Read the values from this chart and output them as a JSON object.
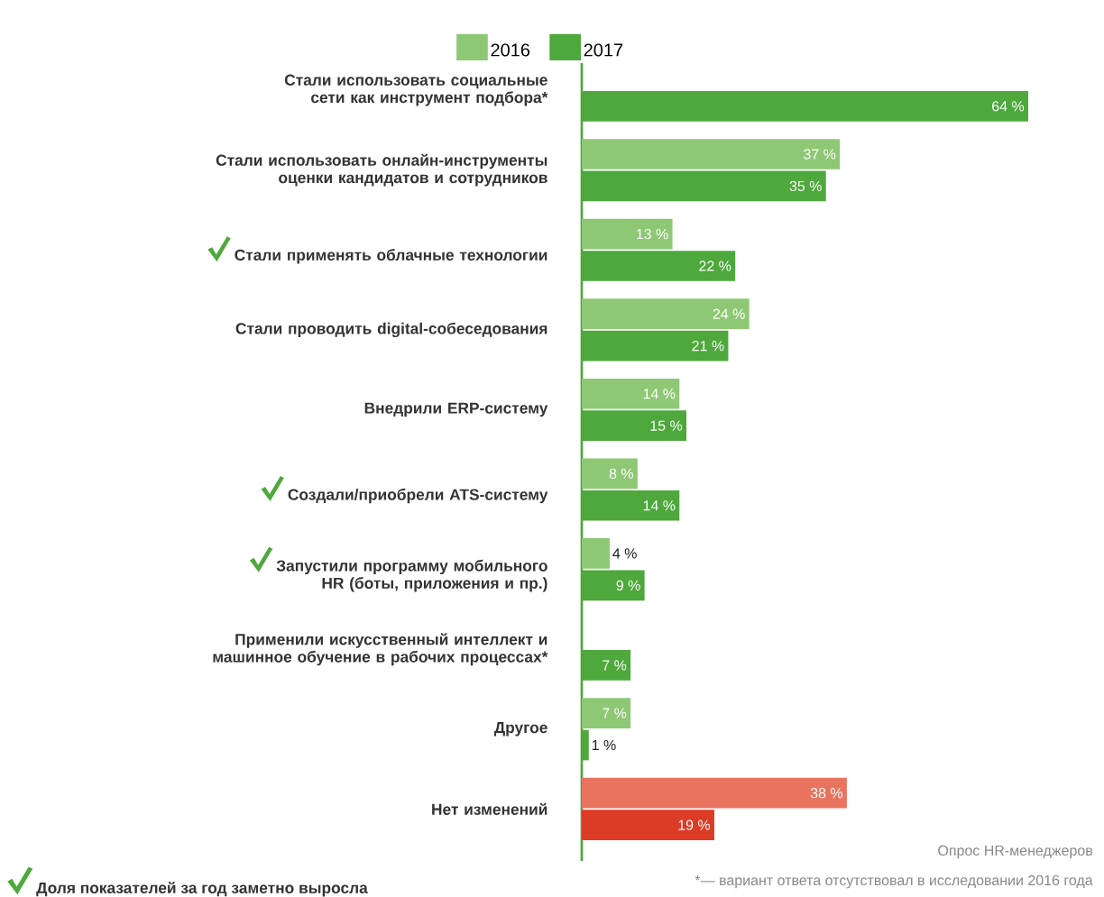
{
  "chart_data": {
    "type": "bar",
    "orientation": "horizontal",
    "legend": "top",
    "tick_labels": "y",
    "categories": [
      "Стали использовать социальные сети как инструмент подбора*",
      "Стали использовать онлайн-инструменты оценки кандидатов и сотрудников",
      "Стали применять облачные технологии",
      "Стали проводить digital-собеседования",
      "Внедрили ERP-систему",
      "Создали/приобрели  ATS-систему",
      "Запустили программу мобильного HR (боты, приложения и пр.)",
      "Применили искусственный интеллект и машинное обучение в рабочих процессах*",
      "Другое",
      "Нет изменений"
    ],
    "series": [
      {
        "name": "2016",
        "values": [
          null,
          37,
          13,
          24,
          14,
          8,
          4,
          null,
          7,
          38
        ],
        "value_labels": [
          null,
          "37 %",
          "13 %",
          "24 %",
          "14 %",
          "8 %",
          "4 %",
          null,
          "7 %",
          "38 %"
        ],
        "colors": [
          "#8ec874",
          "#8ec874",
          "#8ec874",
          "#8ec874",
          "#8ec874",
          "#8ec874",
          "#8ec874",
          "#8ec874",
          "#8ec874",
          "#e8735f"
        ]
      },
      {
        "name": "2017",
        "values": [
          64,
          35,
          22,
          21,
          15,
          14,
          9,
          7,
          1,
          19
        ],
        "value_labels": [
          "64 %",
          "35 %",
          "22 %",
          "21 %",
          "15 %",
          "14 %",
          "9 %",
          "7 %",
          "1 %",
          "19 %"
        ],
        "colors": [
          "#4ea83c",
          "#4ea83c",
          "#4ea83c",
          "#4ea83c",
          "#4ea83c",
          "#4ea83c",
          "#4ea83c",
          "#4ea83c",
          "#4ea83c",
          "#dc3b25"
        ]
      }
    ],
    "annotations": [
      "Опрос HR-менеджеров",
      "*— вариант ответа отсутствовал в исследовании 2016 года",
      "Доля показателей за год заметно выросла"
    ]
  }
}
